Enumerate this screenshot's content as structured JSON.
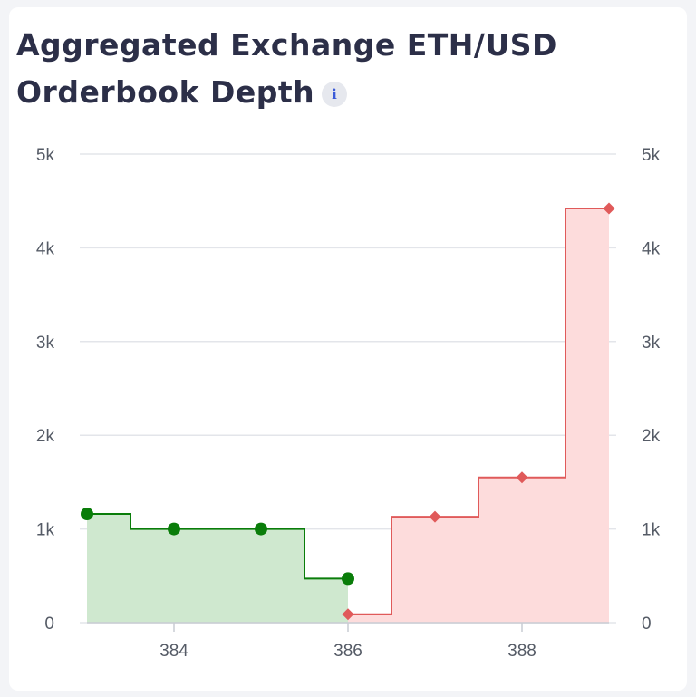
{
  "header": {
    "title_line1": "Aggregated Exchange ETH/USD",
    "title_line2": "Orderbook Depth",
    "info_icon": "info-icon",
    "info_glyph": "i"
  },
  "chart_data": {
    "type": "area",
    "title": "Aggregated Exchange ETH/USD Orderbook Depth",
    "xlabel": "",
    "ylabel": "",
    "xlim": [
      383,
      389
    ],
    "ylim": [
      0,
      5000
    ],
    "x_ticks": [
      {
        "value": 384,
        "label": "384"
      },
      {
        "value": 386,
        "label": "386"
      },
      {
        "value": 388,
        "label": "388"
      }
    ],
    "y_ticks": [
      {
        "value": 0,
        "label": "0"
      },
      {
        "value": 1000,
        "label": "1k"
      },
      {
        "value": 2000,
        "label": "2k"
      },
      {
        "value": 3000,
        "label": "3k"
      },
      {
        "value": 4000,
        "label": "4k"
      },
      {
        "value": 5000,
        "label": "5k"
      }
    ],
    "grid": true,
    "series": [
      {
        "side": "bids",
        "color": "#0a7d0a",
        "fill": "#cfe8cf",
        "marker": "circle",
        "points": [
          {
            "x": 383,
            "y": 1160
          },
          {
            "x": 384,
            "y": 1000
          },
          {
            "x": 385,
            "y": 1000
          },
          {
            "x": 386,
            "y": 470
          }
        ]
      },
      {
        "side": "asks",
        "color": "#e05a5a",
        "fill": "#fddcdc",
        "marker": "diamond",
        "points": [
          {
            "x": 386,
            "y": 90
          },
          {
            "x": 387,
            "y": 1130
          },
          {
            "x": 388,
            "y": 1550
          },
          {
            "x": 389,
            "y": 4420
          }
        ]
      }
    ]
  }
}
